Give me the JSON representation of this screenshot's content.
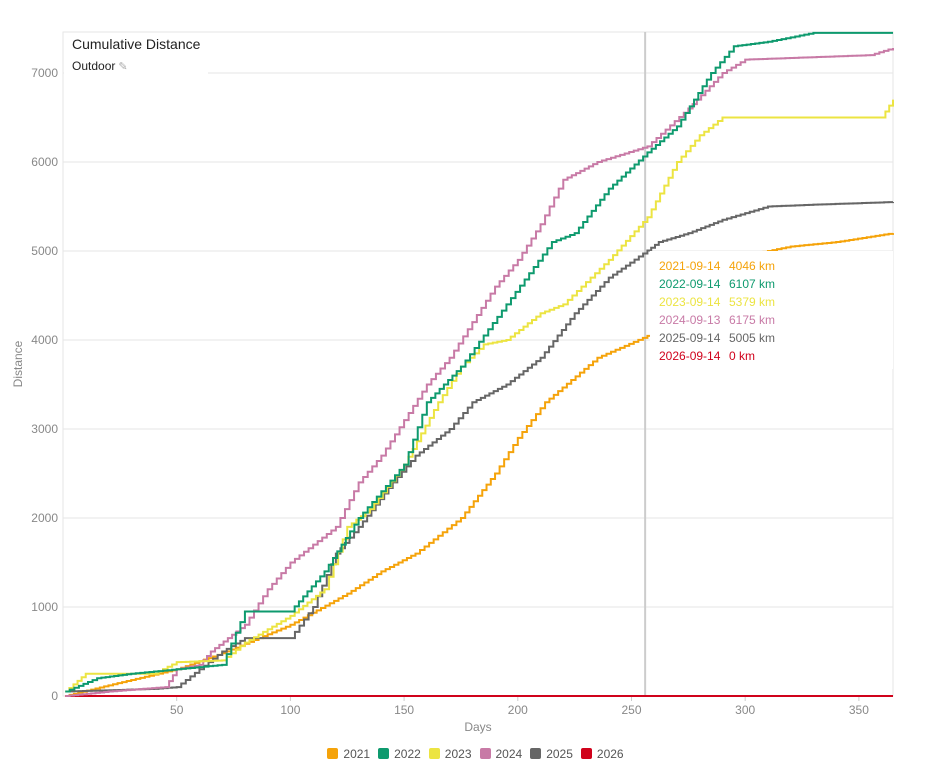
{
  "chart_data": {
    "type": "line",
    "title": "Cumulative Distance",
    "subtitle": "Outdoor",
    "xlabel": "Days",
    "ylabel": "Distance",
    "xlim": [
      0,
      365
    ],
    "ylim": [
      0,
      7460
    ],
    "xticks": [
      50,
      100,
      150,
      200,
      250,
      300,
      350
    ],
    "yticks": [
      0,
      1000,
      2000,
      3000,
      4000,
      5000,
      6000,
      7000
    ],
    "grid": true,
    "legend_position": "bottom",
    "crosshair_day": 256,
    "series": [
      {
        "name": "2021",
        "color": "#f5a30a",
        "points": [
          [
            1,
            0
          ],
          [
            20,
            120
          ],
          [
            50,
            300
          ],
          [
            70,
            480
          ],
          [
            100,
            800
          ],
          [
            125,
            1150
          ],
          [
            140,
            1400
          ],
          [
            155,
            1600
          ],
          [
            175,
            2000
          ],
          [
            190,
            2500
          ],
          [
            200,
            2900
          ],
          [
            212,
            3300
          ],
          [
            235,
            3800
          ],
          [
            257,
            4046
          ],
          [
            280,
            4600
          ],
          [
            300,
            4950
          ],
          [
            320,
            5050
          ],
          [
            340,
            5100
          ],
          [
            365,
            5200
          ]
        ]
      },
      {
        "name": "2022",
        "color": "#0e9a6e",
        "points": [
          [
            1,
            50
          ],
          [
            15,
            200
          ],
          [
            30,
            250
          ],
          [
            50,
            300
          ],
          [
            70,
            350
          ],
          [
            80,
            950
          ],
          [
            100,
            950
          ],
          [
            115,
            1400
          ],
          [
            130,
            2000
          ],
          [
            150,
            2600
          ],
          [
            160,
            3300
          ],
          [
            175,
            3700
          ],
          [
            195,
            4400
          ],
          [
            215,
            5100
          ],
          [
            225,
            5200
          ],
          [
            240,
            5700
          ],
          [
            257,
            6107
          ],
          [
            270,
            6400
          ],
          [
            285,
            7000
          ],
          [
            295,
            7300
          ],
          [
            310,
            7350
          ],
          [
            330,
            7450
          ],
          [
            365,
            7450
          ]
        ]
      },
      {
        "name": "2023",
        "color": "#ece442",
        "points": [
          [
            1,
            50
          ],
          [
            10,
            250
          ],
          [
            40,
            250
          ],
          [
            50,
            380
          ],
          [
            70,
            400
          ],
          [
            80,
            600
          ],
          [
            100,
            900
          ],
          [
            115,
            1200
          ],
          [
            125,
            1900
          ],
          [
            135,
            2100
          ],
          [
            150,
            2600
          ],
          [
            165,
            3300
          ],
          [
            175,
            3700
          ],
          [
            185,
            3950
          ],
          [
            195,
            4000
          ],
          [
            210,
            4300
          ],
          [
            220,
            4400
          ],
          [
            240,
            4900
          ],
          [
            257,
            5379
          ],
          [
            270,
            6000
          ],
          [
            280,
            6300
          ],
          [
            290,
            6500
          ],
          [
            360,
            6500
          ],
          [
            365,
            6700
          ]
        ]
      },
      {
        "name": "2024",
        "color": "#c87aa6",
        "points": [
          [
            1,
            0
          ],
          [
            20,
            50
          ],
          [
            45,
            100
          ],
          [
            50,
            300
          ],
          [
            60,
            350
          ],
          [
            65,
            500
          ],
          [
            80,
            800
          ],
          [
            90,
            1200
          ],
          [
            100,
            1500
          ],
          [
            110,
            1700
          ],
          [
            120,
            1900
          ],
          [
            130,
            2400
          ],
          [
            140,
            2700
          ],
          [
            150,
            3100
          ],
          [
            160,
            3500
          ],
          [
            170,
            3800
          ],
          [
            180,
            4200
          ],
          [
            190,
            4600
          ],
          [
            200,
            4900
          ],
          [
            210,
            5300
          ],
          [
            220,
            5800
          ],
          [
            235,
            6000
          ],
          [
            257,
            6175
          ],
          [
            275,
            6600
          ],
          [
            290,
            7000
          ],
          [
            300,
            7150
          ],
          [
            355,
            7200
          ],
          [
            365,
            7280
          ]
        ]
      },
      {
        "name": "2025",
        "color": "#666666",
        "points": [
          [
            1,
            50
          ],
          [
            40,
            80
          ],
          [
            50,
            100
          ],
          [
            60,
            300
          ],
          [
            70,
            500
          ],
          [
            80,
            650
          ],
          [
            100,
            650
          ],
          [
            110,
            1000
          ],
          [
            120,
            1600
          ],
          [
            130,
            1900
          ],
          [
            145,
            2400
          ],
          [
            155,
            2700
          ],
          [
            170,
            3000
          ],
          [
            180,
            3300
          ],
          [
            195,
            3500
          ],
          [
            210,
            3800
          ],
          [
            225,
            4300
          ],
          [
            240,
            4700
          ],
          [
            257,
            5005
          ],
          [
            262,
            5100
          ],
          [
            275,
            5200
          ],
          [
            290,
            5350
          ],
          [
            310,
            5500
          ],
          [
            330,
            5520
          ],
          [
            365,
            5550
          ]
        ]
      },
      {
        "name": "2026",
        "color": "#d0021b",
        "points": [
          [
            1,
            0
          ],
          [
            365,
            0
          ]
        ]
      }
    ],
    "tooltip": [
      {
        "date": "2021-09-14",
        "value": "4046 km",
        "color": "#f5a30a"
      },
      {
        "date": "2022-09-14",
        "value": "6107 km",
        "color": "#0e9a6e"
      },
      {
        "date": "2023-09-14",
        "value": "5379 km",
        "color": "#ece442"
      },
      {
        "date": "2024-09-13",
        "value": "6175 km",
        "color": "#c87aa6"
      },
      {
        "date": "2025-09-14",
        "value": "5005 km",
        "color": "#666666"
      },
      {
        "date": "2026-09-14",
        "value": "0 km",
        "color": "#d0021b"
      }
    ]
  }
}
